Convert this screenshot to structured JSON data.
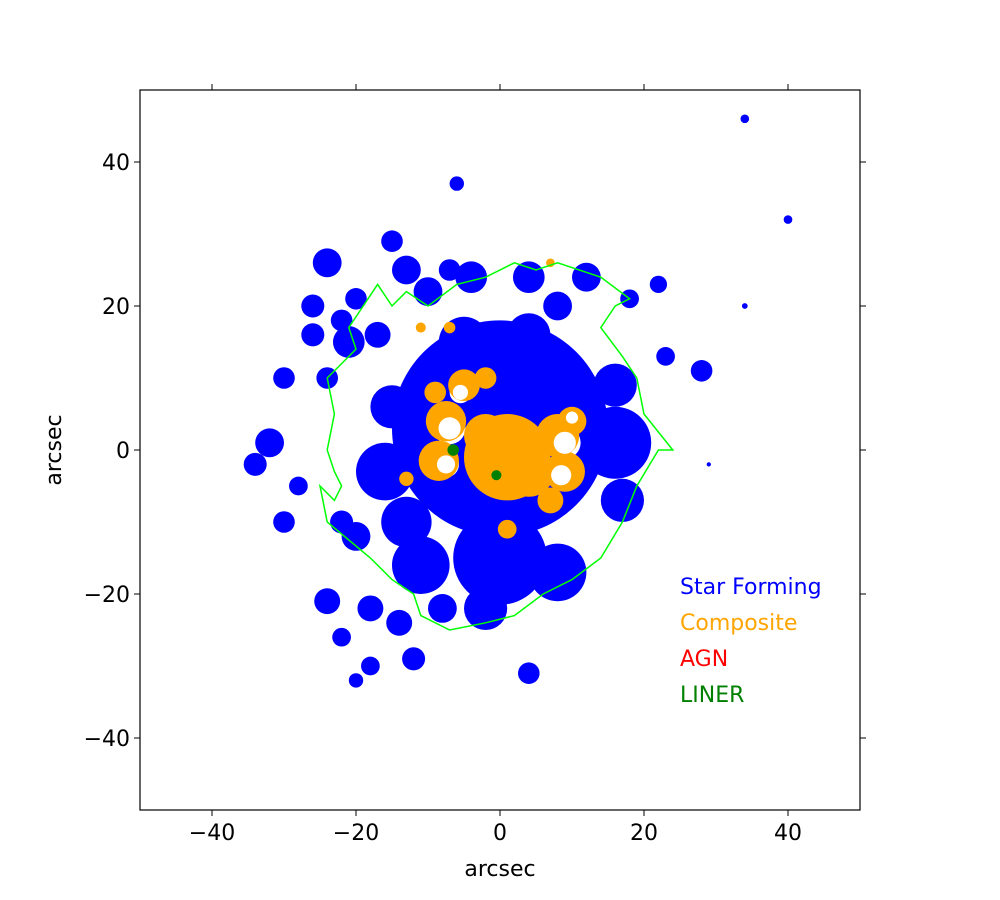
{
  "chart_data": {
    "type": "scatter",
    "xlabel": "arcsec",
    "ylabel": "arcsec",
    "xlim": [
      -50,
      50
    ],
    "ylim": [
      -50,
      50
    ],
    "xticks": [
      -40,
      -20,
      0,
      20,
      40
    ],
    "yticks": [
      -40,
      -20,
      0,
      20,
      40
    ],
    "xtick_labels": [
      "−40",
      "−20",
      "0",
      "20",
      "40"
    ],
    "ytick_labels": [
      "−40",
      "−20",
      "0",
      "20",
      "40"
    ],
    "grid": false,
    "legend_placement": "lower-right",
    "series": [
      {
        "name": "Star Forming",
        "color": "#0000ff"
      },
      {
        "name": "Composite",
        "color": "#ffa500"
      },
      {
        "name": "AGN",
        "color": "#ff0000"
      },
      {
        "name": "LINER",
        "color": "#008000"
      }
    ],
    "regions": {
      "star_forming": [
        {
          "x": 0,
          "y": 3,
          "r": 15
        },
        {
          "x": 0,
          "y": -15,
          "r": 6.5
        },
        {
          "x": -11,
          "y": -16,
          "r": 4
        },
        {
          "x": 8,
          "y": -17,
          "r": 4
        },
        {
          "x": 16,
          "y": 1,
          "r": 5
        },
        {
          "x": 17,
          "y": -7,
          "r": 3
        },
        {
          "x": 16,
          "y": 9,
          "r": 3
        },
        {
          "x": -16,
          "y": -3,
          "r": 4
        },
        {
          "x": -15,
          "y": 6,
          "r": 3
        },
        {
          "x": -13,
          "y": -10,
          "r": 3.5
        },
        {
          "x": -5,
          "y": 15,
          "r": 3.5
        },
        {
          "x": 4,
          "y": 16,
          "r": 3
        },
        {
          "x": -2,
          "y": -22,
          "r": 3
        },
        {
          "x": -4,
          "y": 24,
          "r": 2.2
        },
        {
          "x": 4,
          "y": 24,
          "r": 2.2
        },
        {
          "x": 12,
          "y": 24,
          "r": 2
        },
        {
          "x": 8,
          "y": 20,
          "r": 2
        },
        {
          "x": -10,
          "y": 22,
          "r": 2
        },
        {
          "x": -13,
          "y": 25,
          "r": 2
        },
        {
          "x": -15,
          "y": 29,
          "r": 1.5
        },
        {
          "x": -7,
          "y": 25,
          "r": 1.5
        },
        {
          "x": -21,
          "y": 15,
          "r": 2.2
        },
        {
          "x": -24,
          "y": 10,
          "r": 1.5
        },
        {
          "x": -24,
          "y": 26,
          "r": 2
        },
        {
          "x": -20,
          "y": 21,
          "r": 1.5
        },
        {
          "x": -22,
          "y": 18,
          "r": 1.5
        },
        {
          "x": -17,
          "y": 16,
          "r": 1.8
        },
        {
          "x": -26,
          "y": 20,
          "r": 1.6
        },
        {
          "x": -26,
          "y": 16,
          "r": 1.6
        },
        {
          "x": -30,
          "y": 10,
          "r": 1.5
        },
        {
          "x": -32,
          "y": 1,
          "r": 2
        },
        {
          "x": -34,
          "y": -2,
          "r": 1.6
        },
        {
          "x": -28,
          "y": -5,
          "r": 1.3
        },
        {
          "x": -30,
          "y": -10,
          "r": 1.5
        },
        {
          "x": -22,
          "y": -10,
          "r": 1.6
        },
        {
          "x": -20,
          "y": -12,
          "r": 2
        },
        {
          "x": -24,
          "y": -21,
          "r": 1.8
        },
        {
          "x": -18,
          "y": -22,
          "r": 1.8
        },
        {
          "x": -14,
          "y": -24,
          "r": 1.8
        },
        {
          "x": -22,
          "y": -26,
          "r": 1.3
        },
        {
          "x": -12,
          "y": -29,
          "r": 1.6
        },
        {
          "x": -18,
          "y": -30,
          "r": 1.3
        },
        {
          "x": -20,
          "y": -32,
          "r": 1
        },
        {
          "x": -8,
          "y": -22,
          "r": 2
        },
        {
          "x": 4,
          "y": -31,
          "r": 1.5
        },
        {
          "x": 23,
          "y": 13,
          "r": 1.3
        },
        {
          "x": 28,
          "y": 11,
          "r": 1.5
        },
        {
          "x": 22,
          "y": 23,
          "r": 1.2
        },
        {
          "x": 18,
          "y": 21,
          "r": 1.3
        },
        {
          "x": -6,
          "y": 37,
          "r": 1
        },
        {
          "x": 34,
          "y": 46,
          "r": 0.6
        },
        {
          "x": 40,
          "y": 32,
          "r": 0.6
        },
        {
          "x": 34,
          "y": 20,
          "r": 0.4
        },
        {
          "x": 29,
          "y": -2,
          "r": 0.3
        }
      ],
      "composite": [
        {
          "x": 1,
          "y": -1,
          "r": 6
        },
        {
          "x": -2,
          "y": 2,
          "r": 3
        },
        {
          "x": 4,
          "y": -3,
          "r": 3.5
        },
        {
          "x": -7.5,
          "y": 4,
          "r": 2.8
        },
        {
          "x": -8.5,
          "y": -1.5,
          "r": 2.8
        },
        {
          "x": -5,
          "y": 9,
          "r": 2.2
        },
        {
          "x": -2,
          "y": 10,
          "r": 1.5
        },
        {
          "x": -9,
          "y": 8,
          "r": 1.5
        },
        {
          "x": 8,
          "y": 2,
          "r": 3
        },
        {
          "x": 9,
          "y": -3,
          "r": 2.8
        },
        {
          "x": 7,
          "y": -7,
          "r": 1.8
        },
        {
          "x": 10,
          "y": 4,
          "r": 2
        },
        {
          "x": 1,
          "y": -11,
          "r": 1.3
        },
        {
          "x": -13,
          "y": -4,
          "r": 1
        },
        {
          "x": -7,
          "y": 17,
          "r": 0.8
        },
        {
          "x": 7,
          "y": 26,
          "r": 0.6
        },
        {
          "x": -11,
          "y": 17,
          "r": 0.7
        }
      ],
      "liner": [
        {
          "x": -6.5,
          "y": 0,
          "r": 0.8
        },
        {
          "x": -0.5,
          "y": -3.5,
          "r": 0.7
        }
      ],
      "white_holes": [
        {
          "x": -7,
          "y": 3,
          "r": 2.2
        },
        {
          "x": -7.5,
          "y": -2,
          "r": 1.8
        },
        {
          "x": -5.5,
          "y": 8,
          "r": 1.5
        },
        {
          "x": 9,
          "y": 1,
          "r": 2.2
        },
        {
          "x": 8.5,
          "y": -3.5,
          "r": 2
        },
        {
          "x": 10,
          "y": 4.5,
          "r": 1.2
        }
      ],
      "contour": [
        [
          2,
          26
        ],
        [
          -2,
          24
        ],
        [
          -6,
          23
        ],
        [
          -10,
          20
        ],
        [
          -13,
          22
        ],
        [
          -15,
          20
        ],
        [
          -17,
          23
        ],
        [
          -19,
          20
        ],
        [
          -21,
          17
        ],
        [
          -20,
          14
        ],
        [
          -22,
          12
        ],
        [
          -24,
          10
        ],
        [
          -23,
          5
        ],
        [
          -24,
          0
        ],
        [
          -23,
          -3
        ],
        [
          -22,
          -5
        ],
        [
          -23,
          -7
        ],
        [
          -25,
          -5
        ],
        [
          -24,
          -10
        ],
        [
          -18,
          -15
        ],
        [
          -15,
          -18
        ],
        [
          -12,
          -20
        ],
        [
          -11,
          -23
        ],
        [
          -7,
          -25
        ],
        [
          -2,
          -24
        ],
        [
          2,
          -23
        ],
        [
          6,
          -20
        ],
        [
          10,
          -18
        ],
        [
          14,
          -15
        ],
        [
          17,
          -10
        ],
        [
          19,
          -5
        ],
        [
          22,
          0
        ],
        [
          24,
          0
        ],
        [
          20,
          5
        ],
        [
          19,
          10
        ],
        [
          17,
          13
        ],
        [
          14,
          17
        ],
        [
          16,
          20
        ],
        [
          18,
          21
        ],
        [
          14,
          24
        ],
        [
          8,
          26
        ],
        [
          5,
          25
        ]
      ]
    },
    "legend": [
      "Star Forming",
      "Composite",
      "AGN",
      "LINER"
    ]
  }
}
